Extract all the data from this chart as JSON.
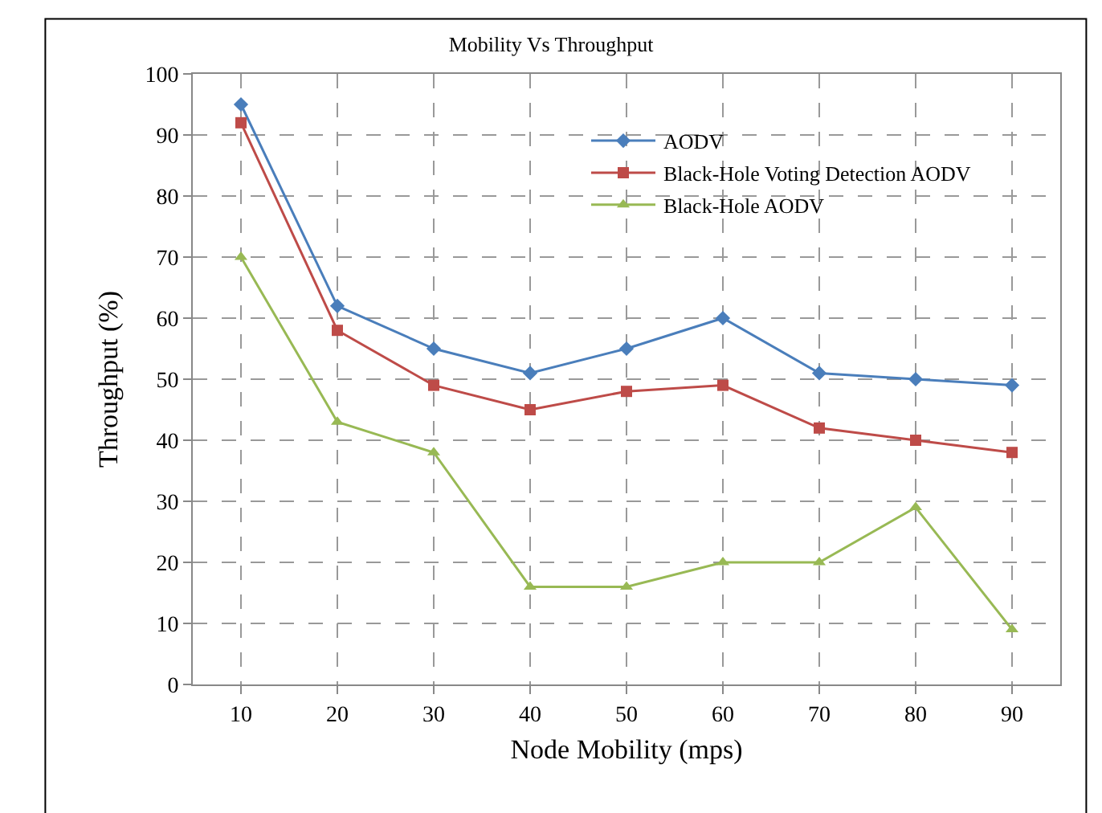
{
  "chart_data": {
    "type": "line",
    "title": "Mobility Vs Throughput",
    "xlabel": "Node Mobility (mps)",
    "ylabel": "Throughput (%)",
    "categories": [
      "10",
      "20",
      "30",
      "40",
      "50",
      "60",
      "70",
      "80",
      "90"
    ],
    "series": [
      {
        "name": "AODV",
        "color": "#4a7ebb",
        "marker": "diamond",
        "values": [
          95,
          62,
          55,
          51,
          55,
          60,
          51,
          50,
          49
        ]
      },
      {
        "name": "Black-Hole Voting Detection AODV",
        "color": "#be4b48",
        "marker": "square",
        "values": [
          92,
          58,
          49,
          45,
          48,
          49,
          42,
          40,
          38
        ]
      },
      {
        "name": "Black-Hole AODV",
        "color": "#98b954",
        "marker": "triangle",
        "values": [
          70,
          43,
          38,
          16,
          16,
          20,
          20,
          29,
          9
        ]
      }
    ],
    "ylim": [
      0,
      100
    ],
    "yticks": [
      0,
      10,
      20,
      30,
      40,
      50,
      60,
      70,
      80,
      90,
      100
    ],
    "grid": true,
    "legend": "top right",
    "line_style": "solid"
  }
}
